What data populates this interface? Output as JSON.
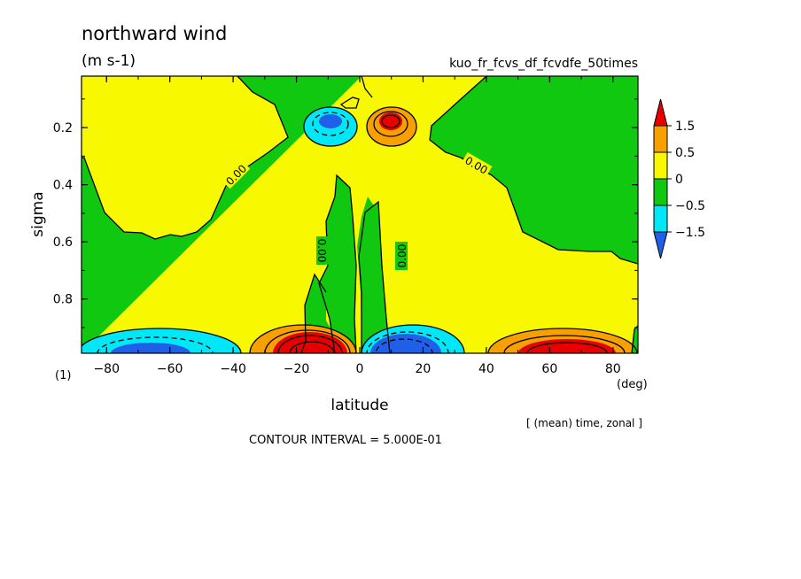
{
  "chart_data": {
    "type": "contour",
    "title": "northward wind",
    "units": "(m s-1)",
    "experiment": "kuo_fr_fcvs_df_fcvdfe_50times",
    "xlabel": "latitude",
    "xunit": "(deg)",
    "ylabel": "sigma",
    "panel_tag": "(1)",
    "averaging_note": "[ (mean) time, zonal ]",
    "contour_interval_text": "CONTOUR INTERVAL = 5.000E-01",
    "xlim": [
      -87.9,
      87.9
    ],
    "ylim": [
      0.99,
      0.02
    ],
    "x_ticks": [
      -80,
      -60,
      -40,
      -20,
      0,
      20,
      40,
      60,
      80
    ],
    "x_tick_labels": [
      "−80",
      "−60",
      "−40",
      "−20",
      "0",
      "20",
      "40",
      "60",
      "80"
    ],
    "y_ticks": [
      0.2,
      0.4,
      0.6,
      0.8
    ],
    "y_tick_labels": [
      "0.2",
      "0.4",
      "0.6",
      "0.8"
    ],
    "zero_contour_labels": [
      "0.00",
      "0.00",
      "0.00",
      "0.00"
    ],
    "colorbar": {
      "levels": [
        -1.5,
        -0.5,
        0,
        0.5,
        1.5
      ],
      "labels": [
        "−1.5",
        "−0.5",
        "0",
        "0.5",
        "1.5"
      ],
      "colors": [
        "#2060e8",
        "#00e8f8",
        "#10c810",
        "#f8f800",
        "#f8a000",
        "#e80000"
      ]
    },
    "features": [
      {
        "kind": "max",
        "lat": 10,
        "sigma": 0.18,
        "value": 1.5
      },
      {
        "kind": "min",
        "lat": -10,
        "sigma": 0.18,
        "value": -1.5
      },
      {
        "kind": "max",
        "lat": -15,
        "sigma": 0.97,
        "value": 2.0
      },
      {
        "kind": "min",
        "lat": 15,
        "sigma": 0.97,
        "value": -2.0
      },
      {
        "kind": "min",
        "lat": -65,
        "sigma": 0.98,
        "value": -1.6
      },
      {
        "kind": "max",
        "lat": 65,
        "sigma": 0.98,
        "value": 1.6
      }
    ]
  }
}
